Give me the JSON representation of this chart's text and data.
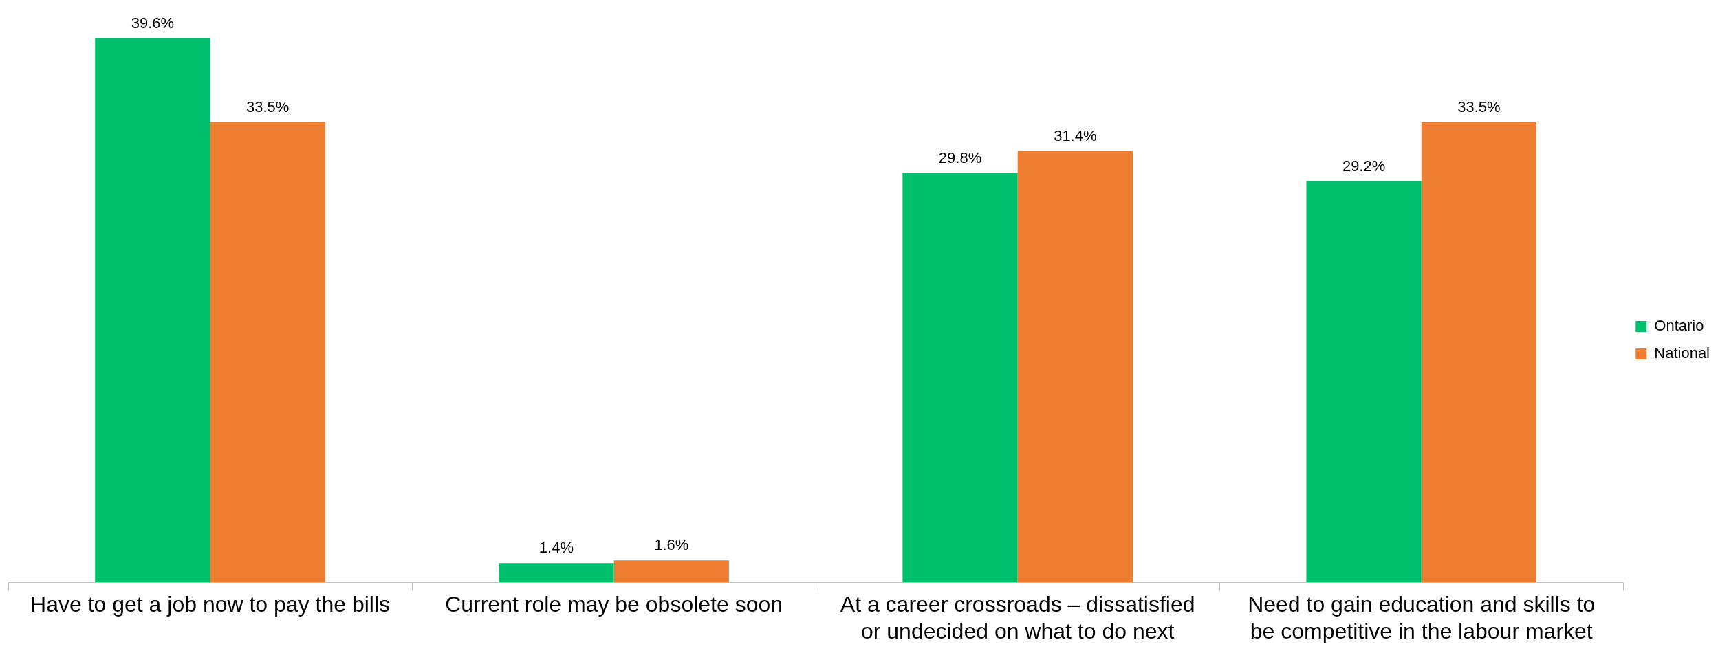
{
  "chart_data": {
    "type": "bar",
    "categories": [
      "Have to get a job now to pay the bills",
      "Current role may be obsolete soon",
      "At a career crossroads – dissatisfied or undecided on what to do next",
      "Need to gain education and skills to be competitive in the labour market"
    ],
    "series": [
      {
        "name": "Ontario",
        "color": "#00c06e",
        "values": [
          39.6,
          1.4,
          29.8,
          29.2
        ],
        "value_labels": [
          "39.6%",
          "1.4%",
          "29.8%",
          "29.2%"
        ]
      },
      {
        "name": "National",
        "color": "#ed7d31",
        "values": [
          33.5,
          1.6,
          31.4,
          33.5
        ],
        "value_labels": [
          "33.5%",
          "1.6%",
          "31.4%",
          "33.5%"
        ]
      }
    ],
    "legend": "right",
    "grid": false
  }
}
